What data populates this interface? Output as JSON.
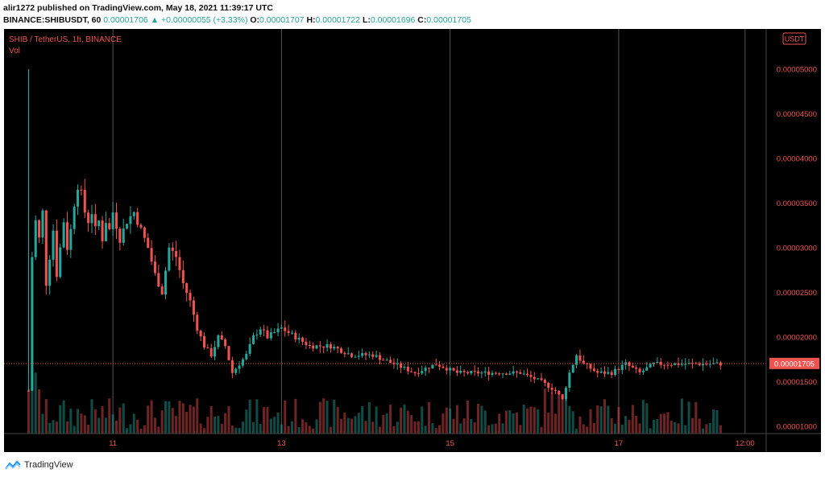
{
  "header": {
    "publish_line": "alir1272 published on TradingView.com, May 18, 2021 11:39:17 UTC",
    "symbol_interval": "BINANCE:SHIBUSDT, 60",
    "last_price": "0.00001706",
    "change_arrow": "▲",
    "change": "+0.00000055 (+3.33%)",
    "o_label": "O:",
    "o_value": "0.00001707",
    "h_label": "H:",
    "h_value": "0.00001722",
    "l_label": "L:",
    "l_value": "0.00001696",
    "c_label": "C:",
    "c_value": "0.00001705"
  },
  "chart_labels": {
    "series_title": "SHIB / TetherUS, 1h, BINANCE",
    "volume_label": "Vol",
    "currency_badge": "USDT",
    "current_price_label": "0.00001705"
  },
  "colors": {
    "up": "#26a69a",
    "down": "#ef5350",
    "axis_text": "#ef5350",
    "grid": "#555555"
  },
  "footer": {
    "brand": "TradingView"
  },
  "chart_data": {
    "type": "candlestick",
    "title": "SHIB / TetherUS, 1h, BINANCE",
    "y_ticks": [
      1e-05,
      1.5e-05,
      2e-05,
      2.5e-05,
      3e-05,
      3.5e-05,
      4e-05,
      4.5e-05,
      5e-05
    ],
    "y_tick_labels": [
      "0.00001000",
      "0.00001500",
      "0.00002000",
      "0.00002500",
      "0.00003000",
      "0.00003500",
      "0.00004000",
      "0.00004500",
      "0.00005000"
    ],
    "x_tick_labels": [
      "11",
      "13",
      "15",
      "17",
      "12:00"
    ],
    "x_tick_times": [
      24,
      72,
      120,
      168,
      204
    ],
    "ylim": [
      9.2e-06,
      5.45e-05
    ],
    "time_range_hours": [
      -7,
      210
    ],
    "current_price": 1.705e-05,
    "grid": true,
    "price_path": [
      [
        0,
        1.4e-05
      ],
      [
        1,
        2.9e-05
      ],
      [
        2,
        3.3e-05
      ],
      [
        3,
        3.1e-05
      ],
      [
        4,
        3.4e-05
      ],
      [
        5,
        2.6e-05
      ],
      [
        6,
        2.9e-05
      ],
      [
        7,
        3.2e-05
      ],
      [
        8,
        2.7e-05
      ],
      [
        9,
        3e-05
      ],
      [
        10,
        3.3e-05
      ],
      [
        11,
        3e-05
      ],
      [
        12,
        3.2e-05
      ],
      [
        13,
        3.5e-05
      ],
      [
        14,
        3.7e-05
      ],
      [
        15,
        3.6e-05
      ],
      [
        16,
        3.4e-05
      ],
      [
        17,
        3.3e-05
      ],
      [
        18,
        3.4e-05
      ],
      [
        19,
        3.2e-05
      ],
      [
        20,
        3.3e-05
      ],
      [
        21,
        3.1e-05
      ],
      [
        22,
        3.3e-05
      ],
      [
        23,
        3.2e-05
      ],
      [
        24,
        3.4e-05
      ],
      [
        26,
        3.1e-05
      ],
      [
        28,
        3.3e-05
      ],
      [
        30,
        3.4e-05
      ],
      [
        32,
        3.2e-05
      ],
      [
        34,
        3e-05
      ],
      [
        36,
        2.7e-05
      ],
      [
        38,
        2.5e-05
      ],
      [
        40,
        3e-05
      ],
      [
        42,
        2.9e-05
      ],
      [
        44,
        2.6e-05
      ],
      [
        46,
        2.4e-05
      ],
      [
        48,
        2.1e-05
      ],
      [
        50,
        1.9e-05
      ],
      [
        52,
        1.8e-05
      ],
      [
        54,
        2e-05
      ],
      [
        56,
        1.9e-05
      ],
      [
        58,
        1.6e-05
      ],
      [
        60,
        1.7e-05
      ],
      [
        62,
        1.8e-05
      ],
      [
        64,
        2e-05
      ],
      [
        66,
        2.1e-05
      ],
      [
        68,
        2e-05
      ],
      [
        72,
        2.1e-05
      ],
      [
        76,
        2e-05
      ],
      [
        80,
        1.9e-05
      ],
      [
        86,
        1.9e-05
      ],
      [
        92,
        1.8e-05
      ],
      [
        98,
        1.8e-05
      ],
      [
        104,
        1.7e-05
      ],
      [
        110,
        1.6e-05
      ],
      [
        116,
        1.7e-05
      ],
      [
        122,
        1.6e-05
      ],
      [
        128,
        1.6e-05
      ],
      [
        134,
        1.6e-05
      ],
      [
        140,
        1.6e-05
      ],
      [
        146,
        1.5e-05
      ],
      [
        150,
        1.4e-05
      ],
      [
        152,
        1.3e-05
      ],
      [
        154,
        1.6e-05
      ],
      [
        156,
        1.8e-05
      ],
      [
        158,
        1.7e-05
      ],
      [
        162,
        1.6e-05
      ],
      [
        166,
        1.6e-05
      ],
      [
        170,
        1.7e-05
      ],
      [
        174,
        1.6e-05
      ],
      [
        178,
        1.7e-05
      ],
      [
        182,
        1.7e-05
      ],
      [
        186,
        1.7e-05
      ],
      [
        190,
        1.7e-05
      ],
      [
        194,
        1.7e-05
      ],
      [
        197,
        1.7e-05
      ]
    ]
  }
}
